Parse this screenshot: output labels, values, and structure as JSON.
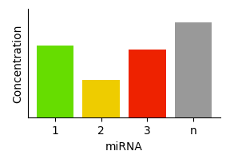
{
  "chart_data": {
    "type": "bar",
    "categories": [
      "1",
      "2",
      "3",
      "n"
    ],
    "values": [
      0.72,
      0.38,
      0.68,
      0.95
    ],
    "colors": [
      "#66dd00",
      "#eecc00",
      "#ee2200",
      "#999999"
    ],
    "xlabel": "miRNA",
    "ylabel": "Concentration",
    "ylim": [
      0,
      1.08
    ],
    "yticks": [],
    "tick_labels": "x",
    "grid": false
  }
}
